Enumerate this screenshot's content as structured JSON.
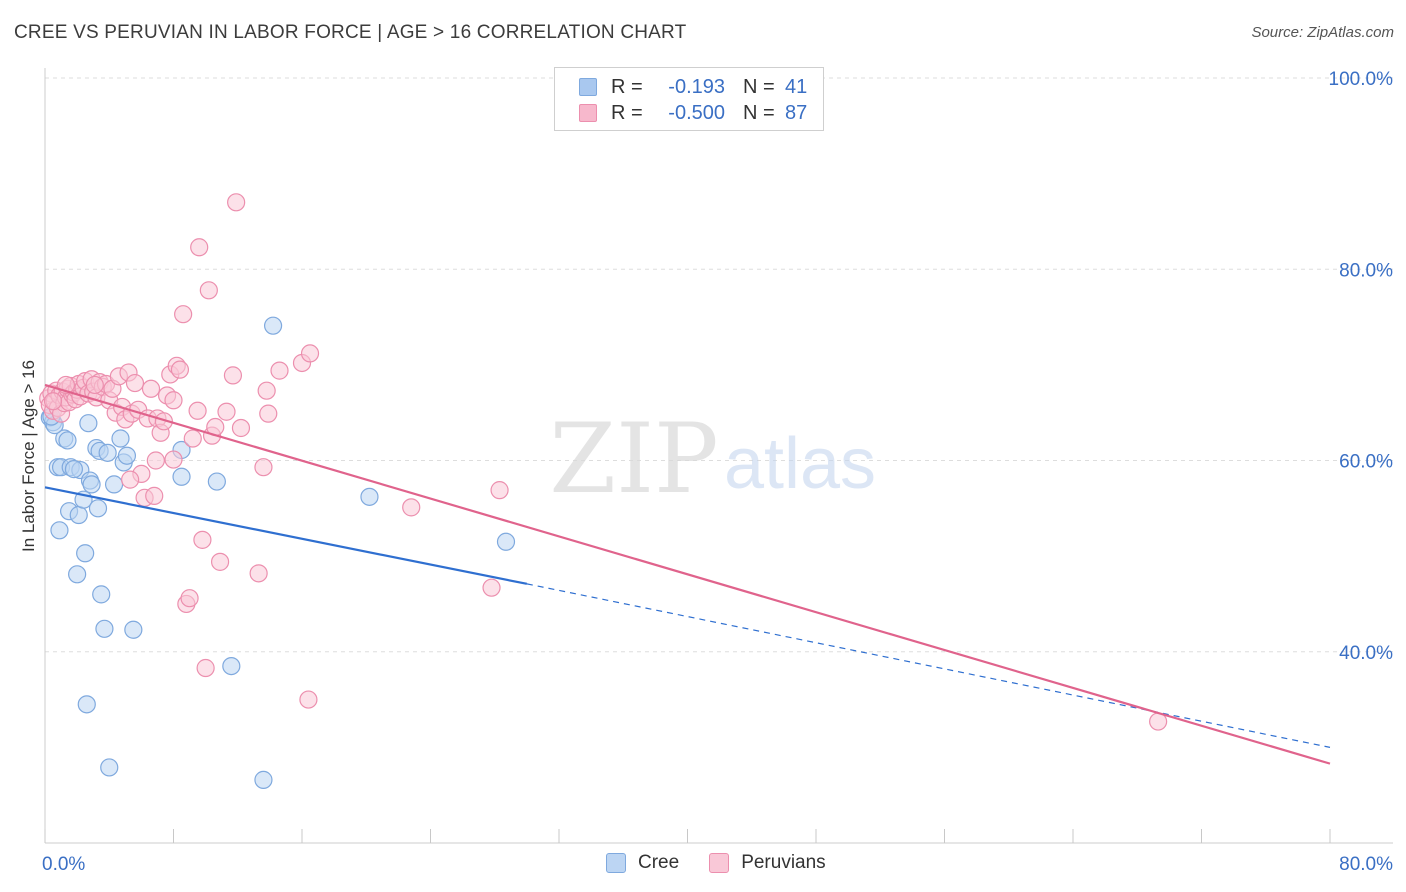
{
  "title": "CREE VS PERUVIAN IN LABOR FORCE | AGE > 16 CORRELATION CHART",
  "source": "Source: ZipAtlas.com",
  "watermark": {
    "zip": "ZIP",
    "atlas": "atlas"
  },
  "legend": {
    "rows": [
      {
        "r_label": "R =",
        "r_value": "-0.193",
        "n_label": "N =",
        "n_value": "41",
        "color": "#a9c8ef",
        "border": "#7fa9de"
      },
      {
        "r_label": "R =",
        "r_value": "-0.500",
        "n_label": "N =",
        "n_value": "87",
        "color": "#f7b8cc",
        "border": "#ec8fae"
      }
    ]
  },
  "bottom_legend": [
    {
      "name": "Cree",
      "color": "#bcd5f3",
      "border": "#7fa9de"
    },
    {
      "name": "Peruvians",
      "color": "#f9c8d7",
      "border": "#ec8fae"
    }
  ],
  "chart_data": {
    "type": "scatter",
    "title": "CREE VS PERUVIAN IN LABOR FORCE | AGE > 16 CORRELATION CHART",
    "xlabel": "",
    "ylabel": "In Labor Force | Age > 16",
    "xlim": [
      0,
      80
    ],
    "ylim": [
      20,
      100
    ],
    "x_tick_labels": [
      "0.0%",
      "80.0%"
    ],
    "y_ticks": [
      40,
      60,
      80,
      100
    ],
    "y_tick_labels": [
      "40.0%",
      "60.0%",
      "80.0%",
      "100.0%"
    ],
    "grid": true,
    "series": [
      {
        "name": "Cree",
        "color": "#7fa9de",
        "line_color": "#2f6fd0",
        "trend": {
          "x0": 0,
          "y0": 57.2,
          "x1": 30,
          "y1": 47.1,
          "dash_to_x": 80,
          "dash_to_y": 30.0
        },
        "points": [
          [
            0.3,
            64.5
          ],
          [
            0.5,
            64.0
          ],
          [
            0.8,
            59.3
          ],
          [
            1.0,
            59.3
          ],
          [
            1.2,
            62.3
          ],
          [
            1.4,
            62.1
          ],
          [
            1.5,
            54.7
          ],
          [
            1.6,
            59.3
          ],
          [
            2.0,
            48.1
          ],
          [
            2.1,
            54.3
          ],
          [
            2.2,
            59.0
          ],
          [
            2.4,
            55.9
          ],
          [
            2.5,
            50.3
          ],
          [
            2.6,
            34.5
          ],
          [
            2.7,
            63.9
          ],
          [
            2.8,
            57.9
          ],
          [
            2.9,
            57.5
          ],
          [
            3.2,
            61.3
          ],
          [
            3.3,
            55.0
          ],
          [
            3.4,
            61.0
          ],
          [
            3.5,
            46.0
          ],
          [
            3.7,
            42.4
          ],
          [
            3.9,
            60.8
          ],
          [
            4.0,
            27.9
          ],
          [
            4.3,
            57.5
          ],
          [
            4.7,
            62.3
          ],
          [
            4.9,
            59.8
          ],
          [
            5.1,
            60.5
          ],
          [
            5.5,
            42.3
          ],
          [
            8.5,
            58.3
          ],
          [
            8.5,
            61.1
          ],
          [
            10.7,
            57.8
          ],
          [
            11.6,
            38.5
          ],
          [
            13.6,
            26.6
          ],
          [
            14.2,
            74.1
          ],
          [
            20.2,
            56.2
          ],
          [
            28.7,
            51.5
          ],
          [
            0.6,
            63.7
          ],
          [
            0.9,
            52.7
          ],
          [
            1.8,
            59.1
          ],
          [
            0.4,
            64.6
          ]
        ]
      },
      {
        "name": "Peruvians",
        "color": "#ec8fae",
        "line_color": "#e0638c",
        "trend": {
          "x0": 0,
          "y0": 67.9,
          "x1": 80,
          "y1": 28.3
        },
        "points": [
          [
            0.2,
            66.5
          ],
          [
            0.3,
            65.8
          ],
          [
            0.4,
            67.0
          ],
          [
            0.5,
            65.2
          ],
          [
            0.6,
            66.2
          ],
          [
            0.7,
            67.3
          ],
          [
            0.8,
            65.5
          ],
          [
            0.9,
            66.8
          ],
          [
            1.0,
            64.9
          ],
          [
            1.1,
            67.2
          ],
          [
            1.2,
            66.0
          ],
          [
            1.3,
            66.6
          ],
          [
            1.4,
            67.5
          ],
          [
            1.5,
            66.1
          ],
          [
            1.6,
            67.8
          ],
          [
            1.7,
            66.9
          ],
          [
            1.8,
            67.1
          ],
          [
            1.9,
            66.4
          ],
          [
            2.0,
            67.4
          ],
          [
            2.1,
            68.0
          ],
          [
            2.2,
            66.7
          ],
          [
            2.4,
            67.6
          ],
          [
            2.5,
            68.3
          ],
          [
            2.7,
            67.0
          ],
          [
            2.9,
            68.5
          ],
          [
            3.0,
            67.2
          ],
          [
            3.2,
            66.6
          ],
          [
            3.4,
            68.2
          ],
          [
            3.6,
            67.7
          ],
          [
            3.8,
            68.0
          ],
          [
            4.0,
            66.3
          ],
          [
            4.2,
            67.5
          ],
          [
            4.4,
            65.0
          ],
          [
            4.6,
            68.8
          ],
          [
            4.8,
            65.6
          ],
          [
            5.0,
            64.3
          ],
          [
            5.2,
            69.2
          ],
          [
            5.4,
            64.9
          ],
          [
            5.6,
            68.1
          ],
          [
            5.8,
            65.3
          ],
          [
            6.0,
            58.6
          ],
          [
            6.2,
            56.1
          ],
          [
            6.4,
            64.4
          ],
          [
            6.6,
            67.5
          ],
          [
            6.8,
            56.3
          ],
          [
            7.0,
            64.4
          ],
          [
            7.2,
            62.9
          ],
          [
            7.4,
            64.1
          ],
          [
            7.6,
            66.8
          ],
          [
            7.8,
            69.0
          ],
          [
            8.0,
            66.3
          ],
          [
            8.2,
            69.9
          ],
          [
            8.4,
            69.5
          ],
          [
            8.6,
            75.3
          ],
          [
            8.8,
            45.0
          ],
          [
            9.0,
            45.6
          ],
          [
            9.2,
            62.3
          ],
          [
            9.6,
            82.3
          ],
          [
            9.8,
            51.7
          ],
          [
            10.0,
            38.3
          ],
          [
            10.2,
            77.8
          ],
          [
            10.4,
            62.6
          ],
          [
            10.6,
            63.5
          ],
          [
            10.9,
            49.4
          ],
          [
            11.3,
            65.1
          ],
          [
            11.7,
            68.9
          ],
          [
            11.9,
            87.0
          ],
          [
            12.2,
            63.4
          ],
          [
            13.3,
            48.2
          ],
          [
            13.6,
            59.3
          ],
          [
            13.8,
            67.3
          ],
          [
            13.9,
            64.9
          ],
          [
            14.6,
            69.4
          ],
          [
            16.0,
            70.2
          ],
          [
            16.5,
            71.2
          ],
          [
            16.4,
            35.0
          ],
          [
            22.8,
            55.1
          ],
          [
            27.8,
            46.7
          ],
          [
            28.3,
            56.9
          ],
          [
            69.3,
            32.7
          ],
          [
            9.5,
            65.2
          ],
          [
            8.0,
            60.1
          ],
          [
            6.9,
            60.0
          ],
          [
            5.3,
            58.0
          ],
          [
            3.1,
            67.9
          ],
          [
            1.3,
            67.9
          ],
          [
            0.5,
            66.2
          ]
        ]
      }
    ]
  }
}
